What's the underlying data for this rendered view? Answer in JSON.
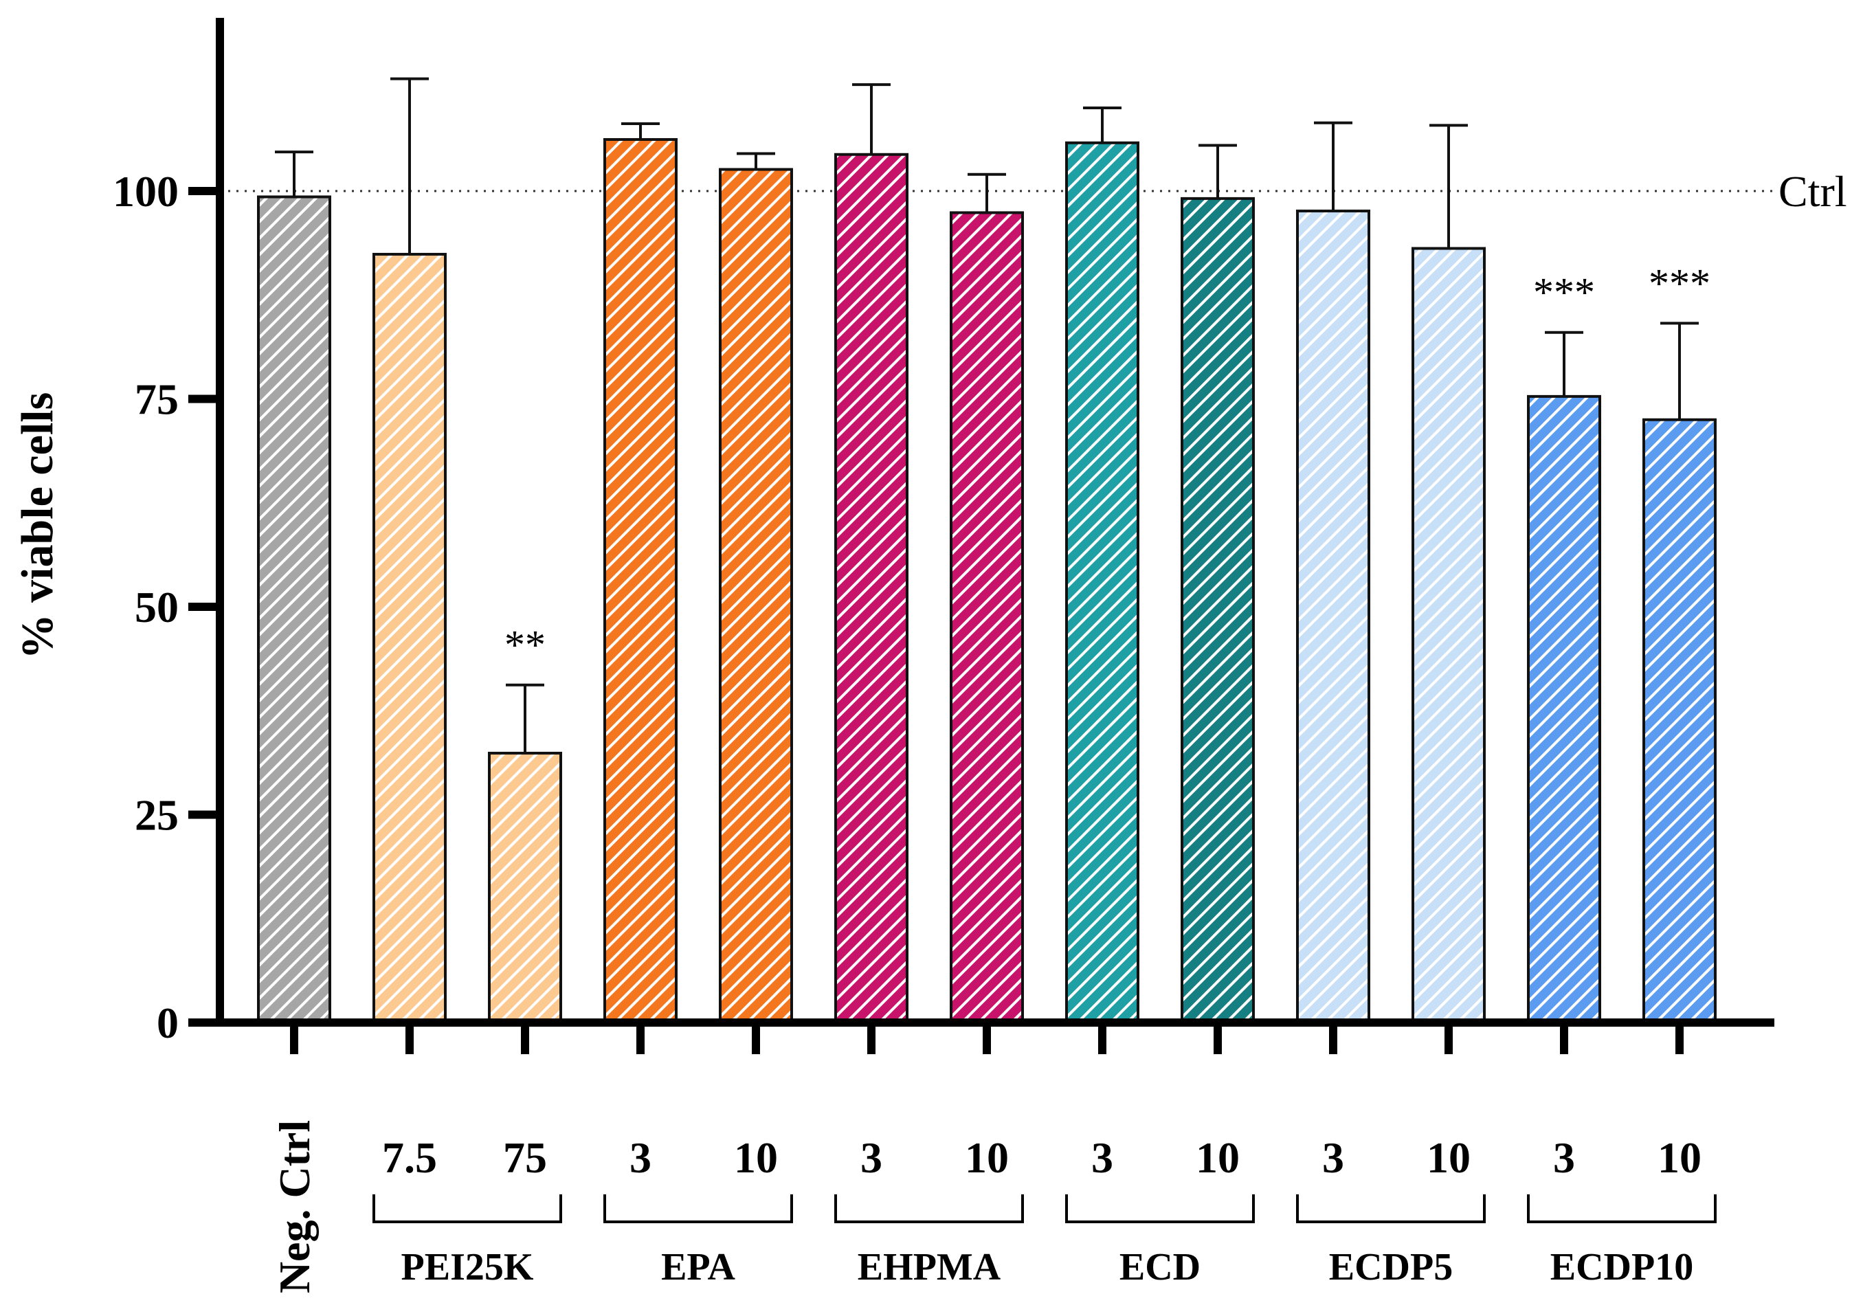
{
  "chart_data": {
    "type": "bar",
    "ylabel": "% viable cells",
    "ylim": [
      0,
      125
    ],
    "yticks": [
      0,
      25,
      50,
      75,
      100
    ],
    "reference_line": {
      "value": 100,
      "label": "Ctrl",
      "style": "dotted"
    },
    "bars": [
      {
        "group": "",
        "sublabel": "Neg. Ctrl",
        "value": 99.3,
        "error": 5.4,
        "color": "#a6a6a6",
        "sig": ""
      },
      {
        "group": "PEI25K",
        "sublabel": "7.5",
        "value": 92.4,
        "error": 21.1,
        "color": "#fcca91",
        "sig": ""
      },
      {
        "group": "PEI25K",
        "sublabel": "75",
        "value": 32.4,
        "error": 8.2,
        "color": "#fcca91",
        "sig": "**"
      },
      {
        "group": "EPA",
        "sublabel": "3",
        "value": 106.2,
        "error": 1.9,
        "color": "#f4761e",
        "sig": ""
      },
      {
        "group": "EPA",
        "sublabel": "10",
        "value": 102.6,
        "error": 1.9,
        "color": "#f4761e",
        "sig": ""
      },
      {
        "group": "EHPMA",
        "sublabel": "3",
        "value": 104.4,
        "error": 8.4,
        "color": "#c7136a",
        "sig": ""
      },
      {
        "group": "EHPMA",
        "sublabel": "10",
        "value": 97.4,
        "error": 4.6,
        "color": "#c7136a",
        "sig": ""
      },
      {
        "group": "ECD",
        "sublabel": "3",
        "value": 105.8,
        "error": 4.2,
        "color": "#1ea0a4",
        "sig": ""
      },
      {
        "group": "ECD",
        "sublabel": "10",
        "value": 99.1,
        "error": 6.4,
        "color": "#167f81",
        "sig": ""
      },
      {
        "group": "ECDP5",
        "sublabel": "3",
        "value": 97.6,
        "error": 10.6,
        "color": "#c7dff7",
        "sig": ""
      },
      {
        "group": "ECDP5",
        "sublabel": "10",
        "value": 93.1,
        "error": 14.8,
        "color": "#c7dff7",
        "sig": ""
      },
      {
        "group": "ECDP10",
        "sublabel": "3",
        "value": 75.3,
        "error": 7.7,
        "color": "#5b9cf0",
        "sig": "***"
      },
      {
        "group": "ECDP10",
        "sublabel": "10",
        "value": 72.5,
        "error": 11.6,
        "color": "#5b9cf0",
        "sig": "***"
      }
    ],
    "groups": [
      "PEI25K",
      "EPA",
      "EHPMA",
      "ECD",
      "ECDP5",
      "ECDP10"
    ]
  }
}
